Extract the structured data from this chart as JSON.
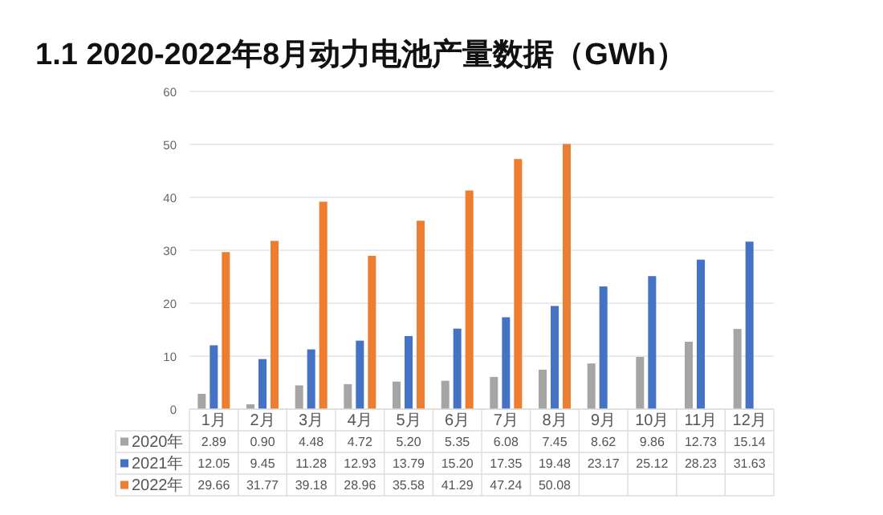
{
  "chart_data": {
    "type": "bar",
    "title": "1.1 2020-2022年8月动力电池产量数据（GWh）",
    "categories": [
      "1月",
      "2月",
      "3月",
      "4月",
      "5月",
      "6月",
      "7月",
      "8月",
      "9月",
      "10月",
      "11月",
      "12月"
    ],
    "series": [
      {
        "name": "2020年",
        "color": "#a5a5a5",
        "values": [
          2.89,
          0.9,
          4.48,
          4.72,
          5.2,
          5.35,
          6.08,
          7.45,
          8.62,
          9.86,
          12.73,
          15.14
        ],
        "value_labels": [
          "2.89",
          "0.90",
          "4.48",
          "4.72",
          "5.20",
          "5.35",
          "6.08",
          "7.45",
          "8.62",
          "9.86",
          "12.73",
          "15.14"
        ]
      },
      {
        "name": "2021年",
        "color": "#4472c4",
        "values": [
          12.05,
          9.45,
          11.28,
          12.93,
          13.79,
          15.2,
          17.35,
          19.48,
          23.17,
          25.12,
          28.23,
          31.63
        ],
        "value_labels": [
          "12.05",
          "9.45",
          "11.28",
          "12.93",
          "13.79",
          "15.20",
          "17.35",
          "19.48",
          "23.17",
          "25.12",
          "28.23",
          "31.63"
        ]
      },
      {
        "name": "2022年",
        "color": "#ed7d31",
        "values": [
          29.66,
          31.77,
          39.18,
          28.96,
          35.58,
          41.29,
          47.24,
          50.08,
          null,
          null,
          null,
          null
        ],
        "value_labels": [
          "29.66",
          "31.77",
          "39.18",
          "28.96",
          "35.58",
          "41.29",
          "47.24",
          "50.08",
          null,
          null,
          null,
          null
        ]
      }
    ],
    "ylim": [
      0,
      60
    ],
    "yticks": [
      0,
      10,
      20,
      30,
      40,
      50,
      60
    ],
    "grid": "y",
    "legend": "bottom"
  }
}
